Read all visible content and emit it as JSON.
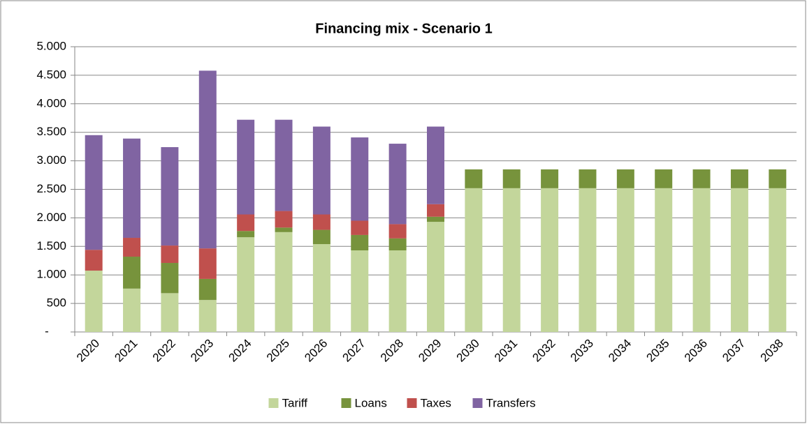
{
  "chart_data": {
    "type": "stacked_bar",
    "title": "Financing mix - Scenario 1",
    "categories": [
      "2020",
      "2021",
      "2022",
      "2023",
      "2024",
      "2025",
      "2026",
      "2027",
      "2028",
      "2029",
      "2030",
      "2031",
      "2032",
      "2033",
      "2034",
      "2035",
      "2036",
      "2037",
      "2038"
    ],
    "series": [
      {
        "name": "Tariff",
        "color": "#c3d69b",
        "values": [
          1075,
          760,
          680,
          560,
          1660,
          1750,
          1540,
          1430,
          1430,
          1930,
          2520,
          2520,
          2520,
          2520,
          2520,
          2520,
          2520,
          2520,
          2520
        ]
      },
      {
        "name": "Loans",
        "color": "#77933c",
        "values": [
          0,
          560,
          530,
          370,
          110,
          80,
          250,
          270,
          210,
          90,
          330,
          330,
          330,
          330,
          330,
          330,
          330,
          330,
          330
        ]
      },
      {
        "name": "Taxes",
        "color": "#c0504d",
        "values": [
          365,
          330,
          305,
          535,
          290,
          290,
          270,
          250,
          250,
          220,
          0,
          0,
          0,
          0,
          0,
          0,
          0,
          0,
          0
        ]
      },
      {
        "name": "Transfers",
        "color": "#8064a2",
        "values": [
          2010,
          1740,
          1725,
          3115,
          1660,
          1600,
          1540,
          1460,
          1410,
          1360,
          0,
          0,
          0,
          0,
          0,
          0,
          0,
          0,
          0
        ]
      }
    ],
    "ylim": [
      0,
      5000
    ],
    "yticks": [
      {
        "value": 0,
        "label": "-"
      },
      500,
      {
        "value": 1000,
        "label": "1.000"
      },
      {
        "value": 1500,
        "label": "1.500"
      },
      {
        "value": 2000,
        "label": "2.000"
      },
      {
        "value": 2500,
        "label": "2.500"
      },
      {
        "value": 3000,
        "label": "3.000"
      },
      {
        "value": 3500,
        "label": "3.500"
      },
      {
        "value": 4000,
        "label": "4.000"
      },
      {
        "value": 4500,
        "label": "4.500"
      },
      {
        "value": 5000,
        "label": "5.000"
      }
    ],
    "grid": true,
    "legend": "bottom"
  }
}
